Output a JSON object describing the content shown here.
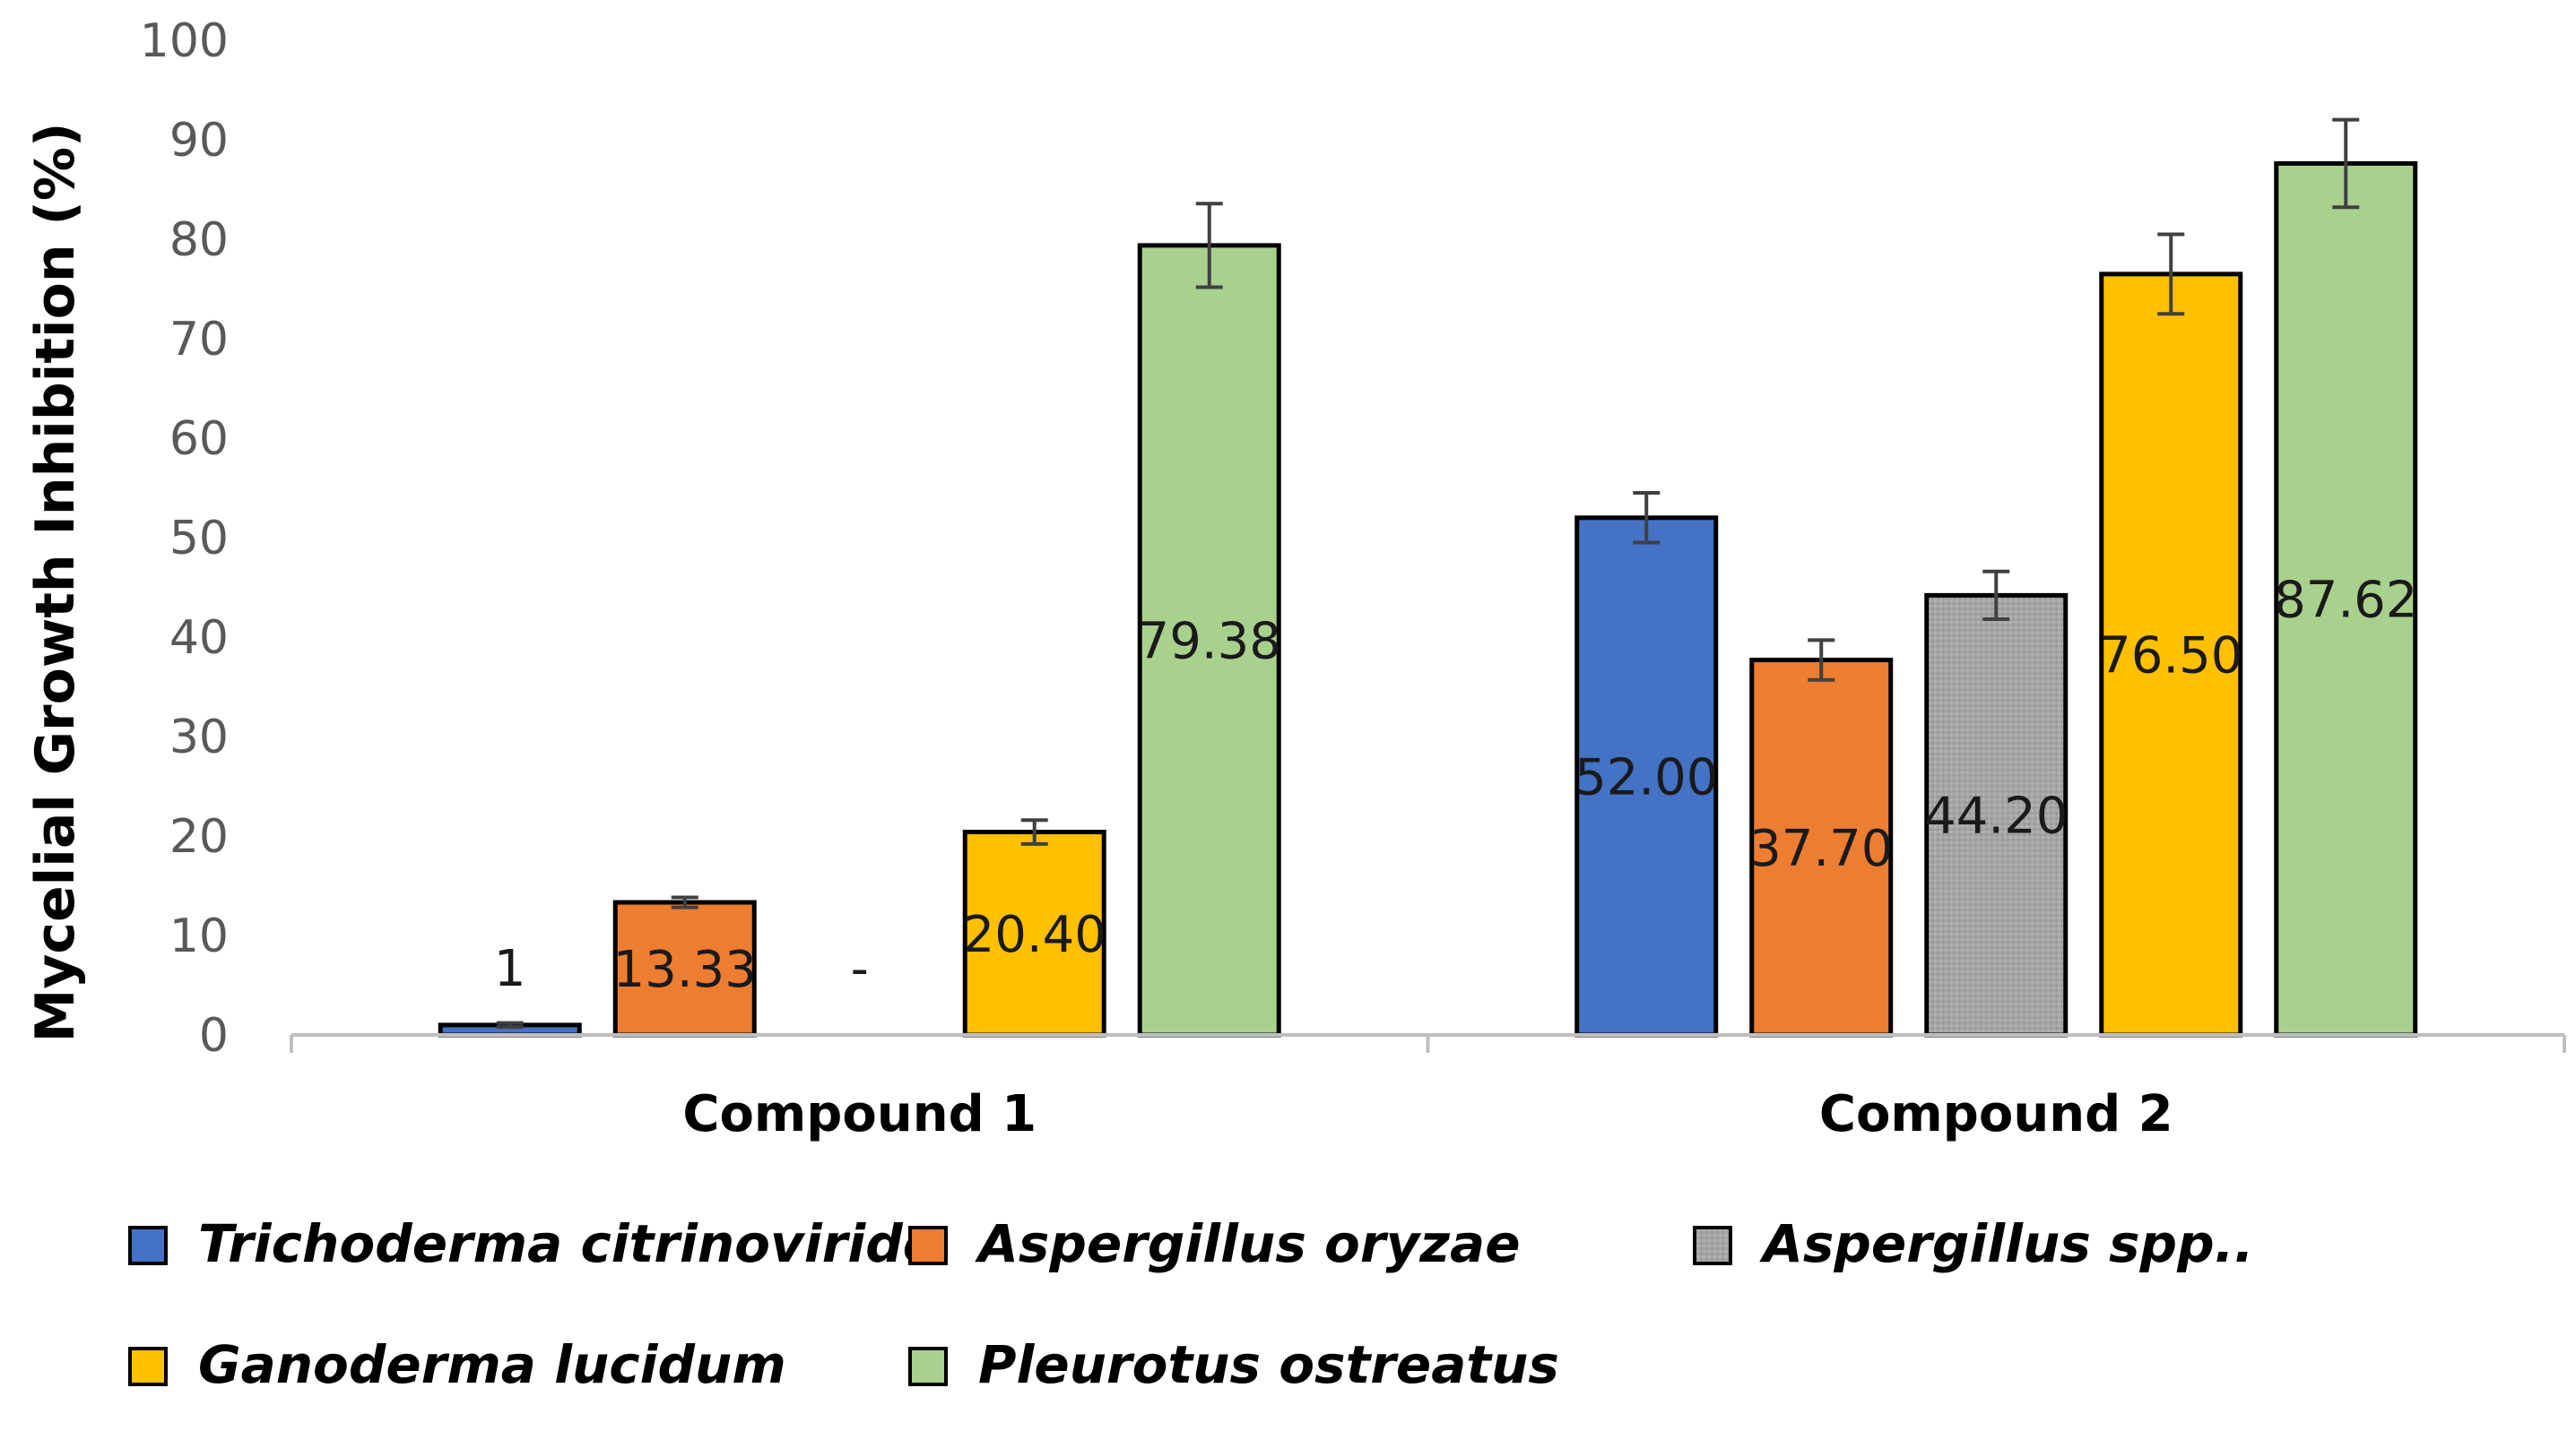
{
  "chart_data": {
    "type": "bar",
    "title": "",
    "xlabel": "",
    "ylabel": "Mycelial Growth Inhibition (%)",
    "ylim": [
      0,
      100
    ],
    "yticks": [
      0,
      10,
      20,
      30,
      40,
      50,
      60,
      70,
      80,
      90,
      100
    ],
    "categories": [
      "Compound 1",
      "Compound 2"
    ],
    "series": [
      {
        "name": "Trichoderma citrinoviride",
        "color": "#4472C4",
        "values": [
          1,
          52.0
        ],
        "errors": [
          0.2,
          2.5
        ],
        "labels": [
          "1",
          "52.00"
        ]
      },
      {
        "name": "Aspergillus oryzae",
        "color": "#ED7D31",
        "values": [
          13.33,
          37.7
        ],
        "errors": [
          0.5,
          2.0
        ],
        "labels": [
          "13.33",
          "37.70"
        ]
      },
      {
        "name": "Aspergillus spp..",
        "color": "#A5A5A5",
        "values": [
          0,
          44.2
        ],
        "errors": [
          0,
          2.4
        ],
        "labels": [
          "-",
          "44.20"
        ]
      },
      {
        "name": "Ganoderma lucidum",
        "color": "#FFC000",
        "values": [
          20.4,
          76.5
        ],
        "errors": [
          1.2,
          4.0
        ],
        "labels": [
          "20.40",
          "76.50"
        ]
      },
      {
        "name": "Pleurotus ostreatus",
        "color": "#A9D18E",
        "values": [
          79.38,
          87.62
        ],
        "errors": [
          4.2,
          4.4
        ],
        "labels": [
          "79.38",
          "87.62"
        ]
      }
    ],
    "legend_position": "bottom",
    "grid": false
  }
}
